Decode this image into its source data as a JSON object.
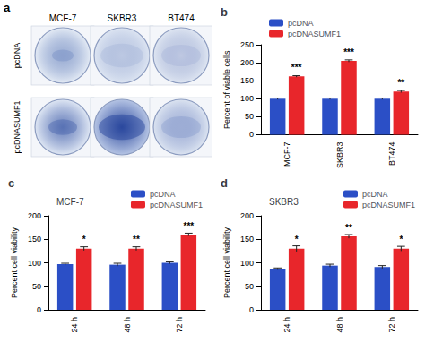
{
  "panel_a": {
    "label": "a",
    "columns": [
      "MCF-7",
      "SKBR3",
      "BT474"
    ],
    "rows": [
      "pcDNA",
      "pcDNASUMF1"
    ]
  },
  "chart_data": [
    {
      "panel": "b",
      "type": "bar",
      "categories": [
        "MCF-7",
        "SKBR3",
        "BT474"
      ],
      "y_label": "Percent of viable cells",
      "ylim": [
        0,
        250
      ],
      "yticks": [
        0,
        50,
        100,
        150,
        200,
        250
      ],
      "grid": false,
      "legend": "top-left",
      "series": [
        {
          "name": "pcDNA",
          "color": "#2b4fc6",
          "values": [
            100,
            100,
            100
          ],
          "errors": [
            2,
            2,
            2
          ]
        },
        {
          "name": "pcDNASUMF1",
          "color": "#e8262b",
          "values": [
            162,
            205,
            120
          ],
          "errors": [
            2,
            3,
            3
          ],
          "significance": [
            "***",
            "***",
            "**"
          ]
        }
      ]
    },
    {
      "panel": "c",
      "type": "bar",
      "title": "MCF-7",
      "categories": [
        "24 h",
        "48 h",
        "72 h"
      ],
      "y_label": "Percent cell viability",
      "ylim": [
        0,
        200
      ],
      "yticks": [
        0,
        50,
        100,
        150,
        200
      ],
      "grid": false,
      "legend": "top-right",
      "series": [
        {
          "name": "pcDNA",
          "color": "#2b4fc6",
          "values": [
            97,
            96,
            100
          ],
          "errors": [
            2,
            3,
            2
          ]
        },
        {
          "name": "pcDNASUMF1",
          "color": "#e8262b",
          "values": [
            130,
            130,
            160
          ],
          "errors": [
            4,
            4,
            3
          ],
          "significance": [
            "*",
            "**",
            "***"
          ]
        }
      ]
    },
    {
      "panel": "d",
      "type": "bar",
      "title": "SKBR3",
      "categories": [
        "24 h",
        "48 h",
        "72 h"
      ],
      "y_label": "Percent cell viability",
      "ylim": [
        0,
        200
      ],
      "yticks": [
        0,
        50,
        100,
        150,
        200
      ],
      "grid": false,
      "legend": "top-right",
      "series": [
        {
          "name": "pcDNA",
          "color": "#2b4fc6",
          "values": [
            87,
            94,
            91
          ],
          "errors": [
            2,
            3,
            3
          ]
        },
        {
          "name": "pcDNASUMF1",
          "color": "#e8262b",
          "values": [
            130,
            156,
            130
          ],
          "errors": [
            6,
            4,
            5
          ],
          "significance": [
            "*",
            "**",
            "*"
          ]
        }
      ]
    }
  ]
}
